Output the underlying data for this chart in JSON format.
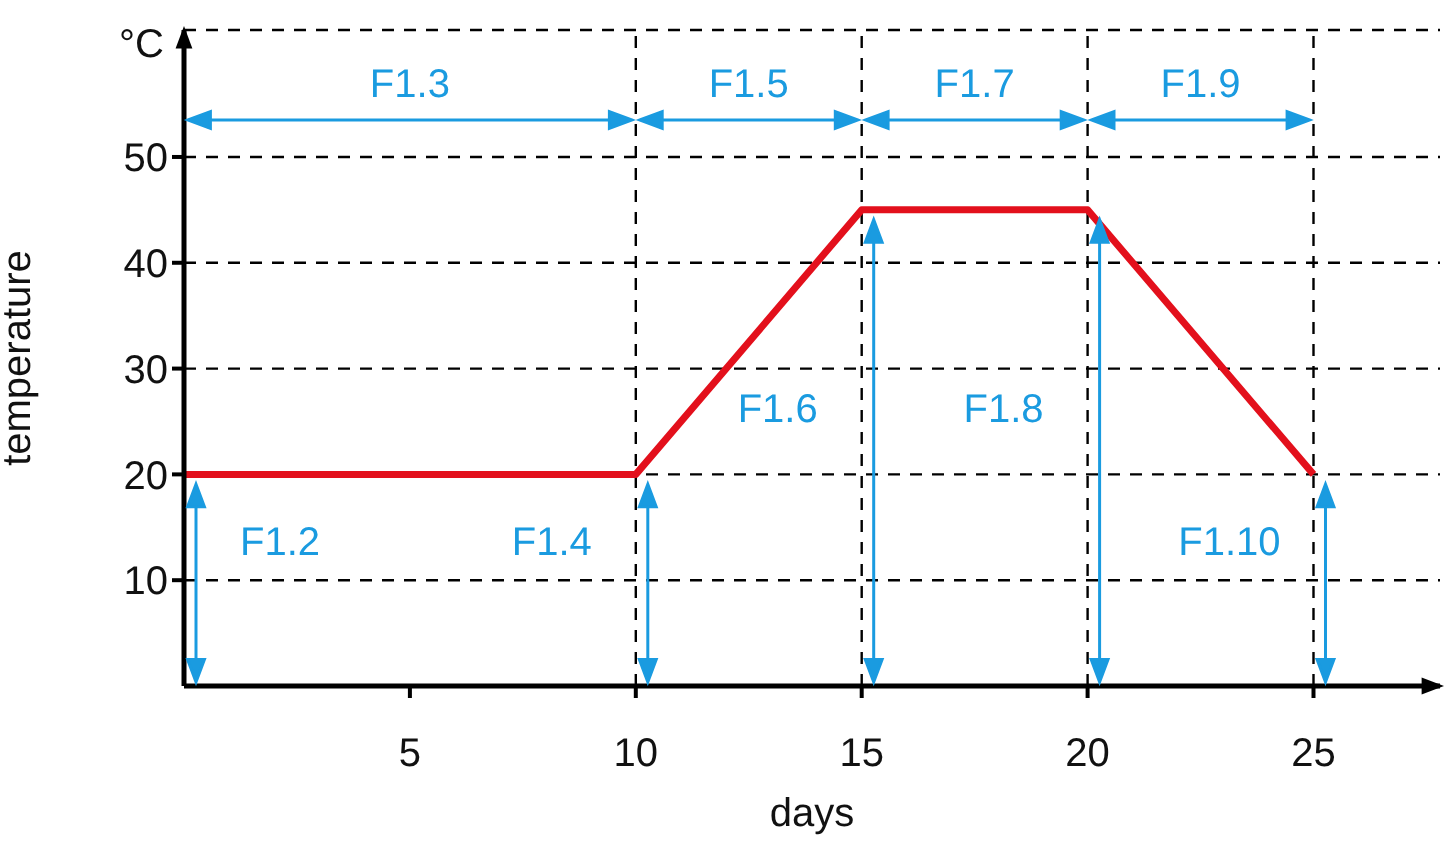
{
  "chart_data": {
    "type": "line",
    "ylabel": "temperature",
    "xlabel": "days",
    "x": [
      0,
      10,
      15,
      20,
      25
    ],
    "series": [
      {
        "color": "#e3101c",
        "values": [
          20,
          20,
          45,
          45,
          20
        ]
      }
    ],
    "xlim": [
      0,
      27.8
    ],
    "ylim": [
      0,
      62
    ],
    "xticks": [
      5,
      10,
      15,
      20,
      25
    ],
    "yticks": [
      10,
      20,
      30,
      40,
      50
    ],
    "grid": "y",
    "marker": "none",
    "line_style": "solid",
    "ref_lines": [
      {
        "axis": "x",
        "value": 10,
        "line_style": "dashed",
        "color": "#000000"
      },
      {
        "axis": "x",
        "value": 15,
        "line_style": "dashed",
        "color": "#000000"
      },
      {
        "axis": "x",
        "value": 20,
        "line_style": "dashed",
        "color": "#000000"
      },
      {
        "axis": "x",
        "value": 25,
        "line_style": "dashed",
        "color": "#000000"
      }
    ],
    "annotations": [
      "°C",
      "F1.2",
      "F1.3",
      "F1.4",
      "F1.5",
      "F1.6",
      "F1.7",
      "F1.8",
      "F1.9",
      "F1.10"
    ]
  }
}
